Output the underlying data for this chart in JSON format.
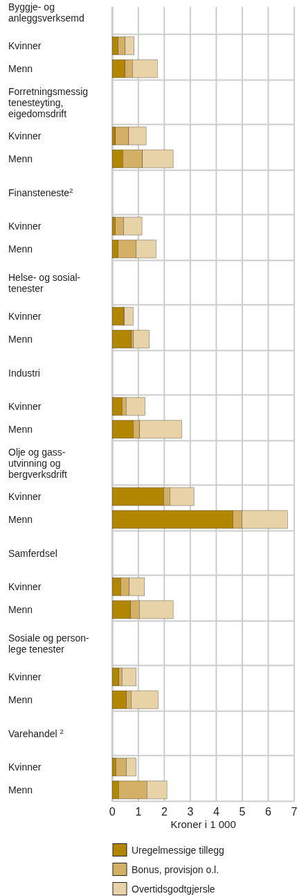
{
  "chart_data": {
    "type": "bar",
    "orientation": "horizontal",
    "stacked": true,
    "categories": [
      "Byggje- og\nanleggsverksemd",
      "Kvinner",
      "Menn",
      "Forretningsmessig\ntenesteyting,\neigedomsdrift",
      "Kvinner",
      "Menn",
      "Finansteneste$^{2}$",
      "Kvinner",
      "Menn",
      "Helse- og sosial-\ntenester",
      "Kvinner",
      "Menn",
      "Industri",
      "Kvinner",
      "Menn",
      "Olje og gass-\nutvinning og\nbergverksdrift",
      "Kvinner",
      "Menn",
      "Samferdsel",
      "Kvinner",
      "Menn",
      "Sosiale og person-\nlege tenester",
      "Kvinner",
      "Menn",
      "Varehandel $^{2}$",
      "Kvinner",
      "Menn"
    ],
    "series": [
      {
        "name": "Uregelmessige tillegg",
        "color": "#b38600",
        "values": [
          null,
          0.22,
          0.49,
          null,
          0.12,
          0.4,
          null,
          0.11,
          0.22,
          null,
          0.43,
          0.73,
          null,
          0.37,
          0.8,
          null,
          1.97,
          4.64,
          null,
          0.32,
          0.7,
          null,
          0.25,
          0.54,
          null,
          0.13,
          0.24
        ]
      },
      {
        "name": "Bonus, provisjon o.l.",
        "color": "#d4b066",
        "values": [
          null,
          0.27,
          0.28,
          null,
          0.51,
          0.76,
          null,
          0.32,
          0.69,
          null,
          0.03,
          0.08,
          null,
          0.16,
          0.25,
          null,
          0.24,
          0.35,
          null,
          0.33,
          0.34,
          null,
          0.12,
          0.18,
          null,
          0.41,
          1.09
        ]
      },
      {
        "name": "Overtidsgodtgjersle",
        "color": "#e8d3a8",
        "values": [
          null,
          0.35,
          0.96,
          null,
          0.67,
          1.18,
          null,
          0.71,
          0.77,
          null,
          0.34,
          0.61,
          null,
          0.73,
          1.62,
          null,
          0.93,
          1.75,
          null,
          0.59,
          1.3,
          null,
          0.55,
          1.04,
          null,
          0.37,
          0.77
        ]
      }
    ],
    "xlabel": "Kroner i 1 000",
    "xlim": [
      0,
      7
    ],
    "xticks": [
      0,
      1,
      2,
      3,
      4,
      5,
      6,
      7
    ],
    "grid": "x",
    "legend": "bottom"
  }
}
